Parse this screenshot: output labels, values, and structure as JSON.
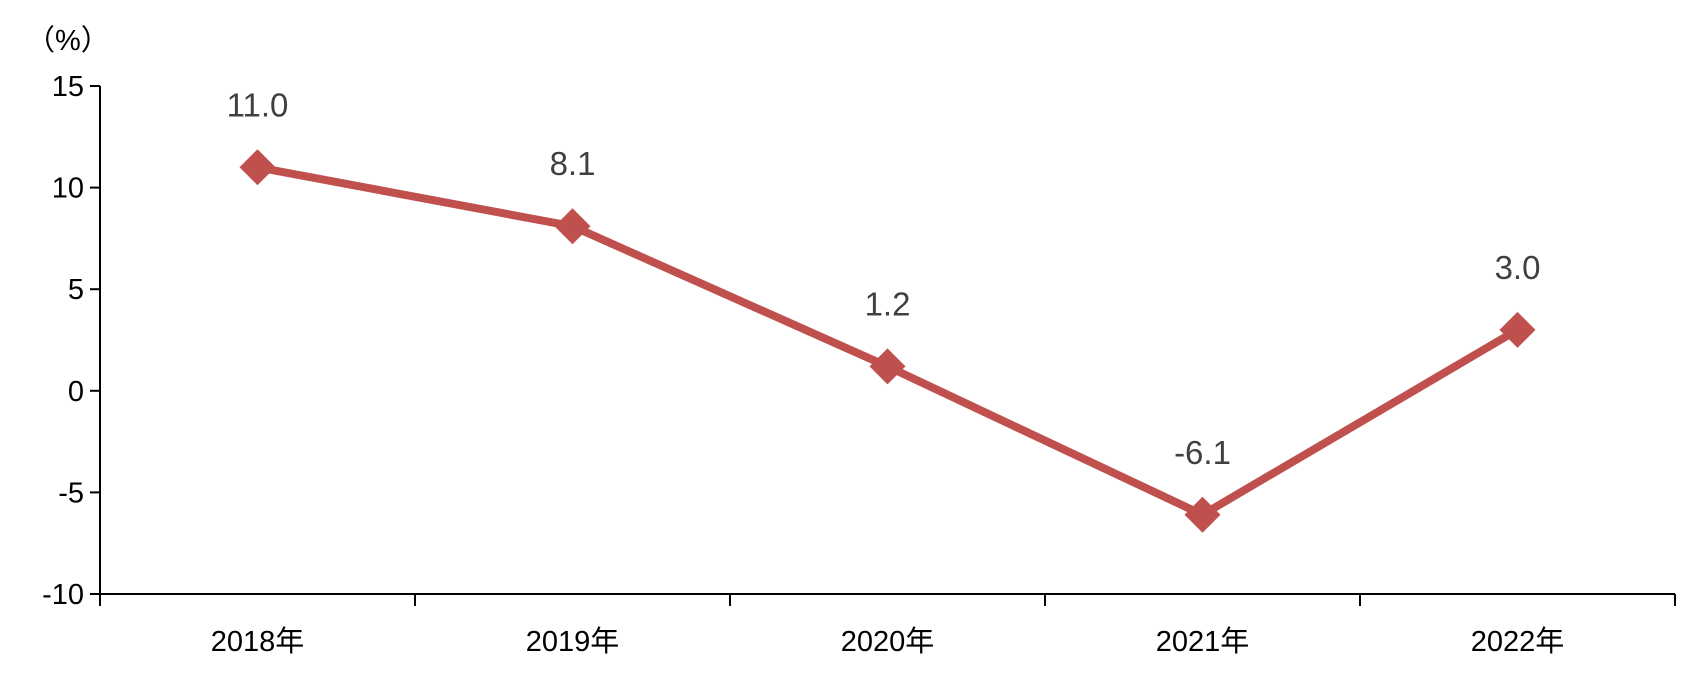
{
  "chart_data": {
    "type": "line",
    "title": "",
    "xlabel": "",
    "ylabel": "（%）",
    "categories": [
      "2018年",
      "2019年",
      "2020年",
      "2021年",
      "2022年"
    ],
    "series": [
      {
        "values": [
          11.0,
          8.1,
          1.2,
          -6.1,
          3.0
        ],
        "data_labels": [
          "11.0",
          "8.1",
          "1.2",
          "-6.1",
          "3.0"
        ],
        "color": "#c0504d",
        "marker": "diamond"
      }
    ],
    "ylim": [
      -10,
      15
    ],
    "y_ticks": [
      15,
      10,
      5,
      0,
      -5,
      -10
    ],
    "y_tick_labels": [
      "15",
      "10",
      "5",
      "0",
      "-5",
      "-10"
    ],
    "grid": false,
    "legend": "none"
  }
}
